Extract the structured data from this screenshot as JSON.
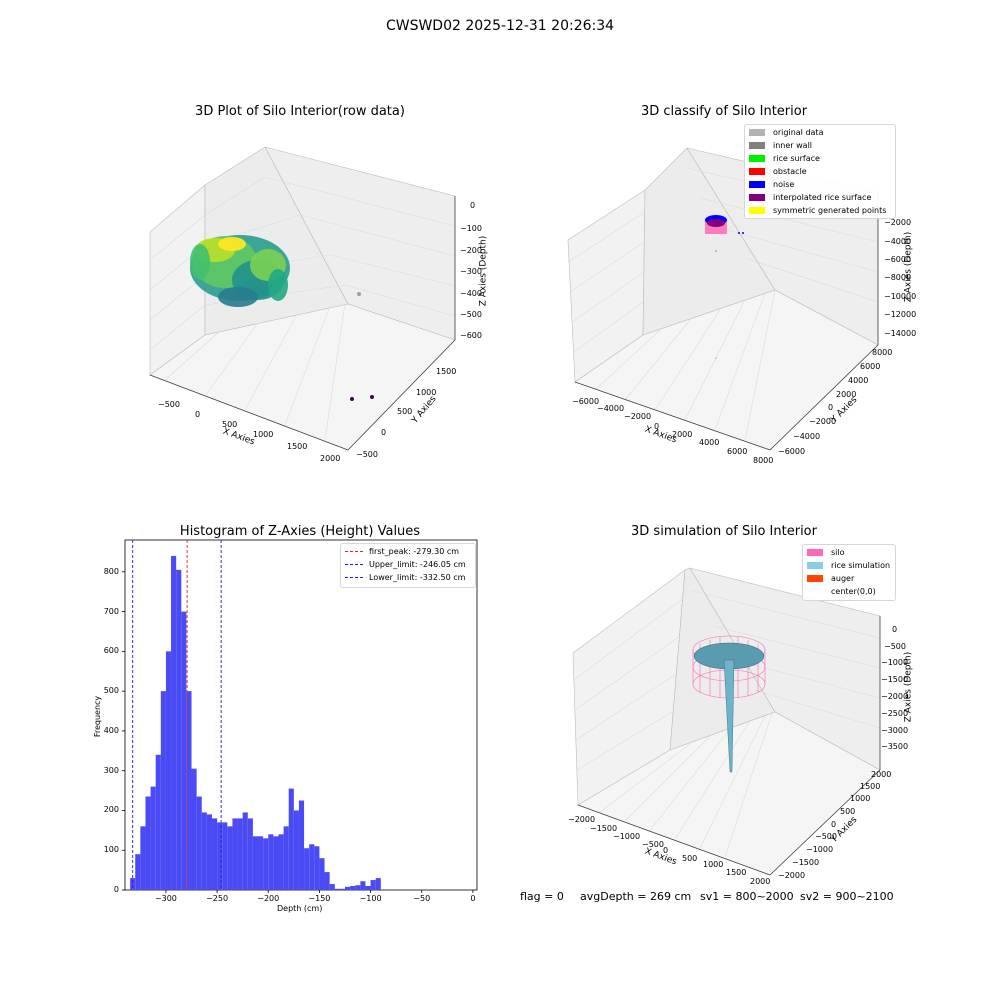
{
  "figure": {
    "suptitle": "CWSWD02 2025-12-31 20:26:34",
    "footer": {
      "flag": "flag = 0",
      "avg_depth": "avgDepth = 269 cm",
      "sv1": "sv1 = 800~2000",
      "sv2": "sv2 = 900~2100"
    }
  },
  "colors": {
    "hist_bar": "#4b4bf5",
    "first_peak": "#d62728",
    "limits": "#1f1fd0",
    "pane": "#f2f2f2",
    "grid": "#dcdcdc",
    "silo": "#ff69b4",
    "rice": "#87ceeb",
    "auger": "#ff4500"
  },
  "chart_data": [
    {
      "type": "scatter",
      "title": "3D Plot of Silo Interior(row data)",
      "xlabel": "X Axies",
      "ylabel": "Y Axies",
      "zlabel": "Z Axies (Depth)",
      "x_ticks": [
        "−500",
        "0",
        "500",
        "1000",
        "1500",
        "2000"
      ],
      "y_ticks": [
        "−500",
        "0",
        "500",
        "1000",
        "1500"
      ],
      "z_ticks": [
        "0",
        "−100",
        "−200",
        "−300",
        "−400",
        "−500",
        "−600"
      ],
      "xlim": [
        -600,
        2000
      ],
      "ylim": [
        -500,
        1600
      ],
      "zlim": [
        -600,
        0
      ],
      "note": "dense colored point cloud of the silo interior with a few outliers"
    },
    {
      "type": "scatter",
      "title": "3D classify of Silo Interior",
      "xlabel": "X Axies",
      "ylabel": "Y Axies",
      "zlabel": "Z Axies (Depth)",
      "x_ticks": [
        "−6000",
        "−4000",
        "−2000",
        "0",
        "2000",
        "4000",
        "6000",
        "8000"
      ],
      "y_ticks": [
        "−6000",
        "−4000",
        "−2000",
        "0",
        "2000",
        "4000",
        "6000",
        "8000"
      ],
      "z_ticks": [
        "−2000",
        "−4000",
        "−6000",
        "−8000",
        "−10000",
        "−12000",
        "−14000"
      ],
      "legend": [
        {
          "label": "original data",
          "color": "#b3b3b3"
        },
        {
          "label": "inner wall",
          "color": "#808080"
        },
        {
          "label": "rice surface",
          "color": "#00ee00"
        },
        {
          "label": "obstacle",
          "color": "#ff0000"
        },
        {
          "label": "noise",
          "color": "#0000ff"
        },
        {
          "label": "interpolated rice surface",
          "color": "#800080"
        },
        {
          "label": "symmetric generated points",
          "color": "#ffff00"
        }
      ],
      "legend_position": "top-right"
    },
    {
      "type": "bar",
      "title": "Histogram of Z-Axies (Height) Values",
      "xlabel": "Depth (cm)",
      "ylabel": "Frequency",
      "bin_start": -335,
      "bin_width": 5,
      "values": [
        30,
        90,
        160,
        235,
        260,
        340,
        500,
        600,
        840,
        805,
        700,
        500,
        305,
        235,
        195,
        190,
        180,
        170,
        170,
        160,
        180,
        180,
        195,
        180,
        135,
        135,
        130,
        140,
        135,
        140,
        160,
        255,
        200,
        225,
        105,
        115,
        110,
        80,
        45,
        15,
        3,
        3,
        8,
        10,
        12,
        22,
        10,
        25,
        30
      ],
      "xlim": [
        -340,
        4
      ],
      "ylim": [
        0,
        880
      ],
      "x_ticks": [
        -300,
        -250,
        -200,
        -150,
        -100,
        -50,
        0
      ],
      "y_ticks": [
        0,
        100,
        200,
        300,
        400,
        500,
        600,
        700,
        800
      ],
      "vlines": [
        {
          "name": "first_peak",
          "value": -279.3,
          "label": "first_peak: -279.30 cm",
          "color": "#d62728"
        },
        {
          "name": "upper_limit",
          "value": -246.05,
          "label": "Upper_limit: -246.05 cm",
          "color": "#1f1fd0"
        },
        {
          "name": "lower_limit",
          "value": -332.5,
          "label": "Lower_limit: -332.50 cm",
          "color": "#1f1fd0"
        }
      ],
      "legend_position": "top-right"
    },
    {
      "type": "scatter",
      "title": "3D simulation of Silo Interior",
      "xlabel": "X Axies",
      "ylabel": "Y Axies",
      "zlabel": "Z Axies (Depth)",
      "x_ticks": [
        "−2000",
        "−1500",
        "−1000",
        "−500",
        "0",
        "500",
        "1000",
        "1500",
        "2000"
      ],
      "y_ticks": [
        "−2000",
        "−1500",
        "−1000",
        "−500",
        "0",
        "500",
        "1000",
        "1500",
        "2000"
      ],
      "z_ticks": [
        "0",
        "−500",
        "−1000",
        "−1500",
        "−2000",
        "−2500",
        "−3000",
        "−3500"
      ],
      "legend": [
        {
          "label": "silo",
          "color": "#ff69b4"
        },
        {
          "label": "rice simulation",
          "color": "#87ceeb"
        },
        {
          "label": "auger",
          "color": "#ff4500"
        },
        {
          "label": "center(0,0)",
          "color": "#ffffff"
        }
      ],
      "legend_position": "top-right"
    }
  ]
}
